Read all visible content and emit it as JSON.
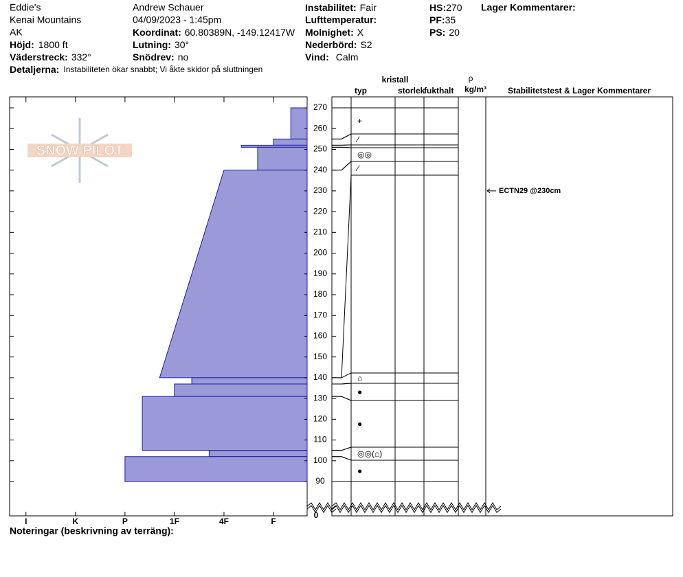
{
  "header": {
    "site": "Eddie's",
    "range": "Kenai Mountains",
    "state": "AK",
    "elevation": {
      "label": "Höjd:",
      "value": "1800 ft"
    },
    "aspect": {
      "label": "Väderstreck:",
      "value": "332°"
    },
    "details": {
      "label": "Detaljerna:",
      "value": "Instabiliteten ökar snabbt; Vi åkte skidor på sluttningen"
    },
    "observer": "Andrew Schauer",
    "datetime": "04/09/2023 - 1:45pm",
    "coordinates": {
      "label": "Koordinat:",
      "value": "60.80389N, -149.12417W"
    },
    "slope": {
      "label": "Lutning:",
      "value": "30°"
    },
    "wind_loading": {
      "label": "Snödrev:",
      "value": "no"
    },
    "instability": {
      "label": "Instabilitet:",
      "value": "Fair"
    },
    "air_temp": {
      "label": "Lufttemperatur:"
    },
    "sky": {
      "label": "Molnighet:",
      "value": "X"
    },
    "precip": {
      "label": "Nederbörd:",
      "value": "S2"
    },
    "wind": {
      "label": "Vind:",
      "value": "Calm"
    },
    "hs": {
      "label": "HS:",
      "value": 270
    },
    "pf": {
      "label": "PF:",
      "value": 35
    },
    "ps": {
      "label": "PS:",
      "value": 20
    },
    "layer_comments": "Lager Kommentarer:"
  },
  "columns": {
    "crystal": "kristall",
    "type": "typ",
    "size": "storlek",
    "moisture": "fukthalt",
    "rho": "ρ",
    "density_unit": "kg/m³",
    "comments": "Stabilitetstest & Lager Kommentarer"
  },
  "logo": "SNOW PILOT",
  "notes": "Noteringar (beskrivning av terräng):",
  "chart_data": {
    "type": "snow_profile",
    "ylim": [
      90,
      270
    ],
    "yticks": [
      90,
      100,
      110,
      120,
      130,
      140,
      150,
      160,
      170,
      180,
      190,
      200,
      210,
      220,
      230,
      240,
      250,
      260,
      270
    ],
    "ybreak_tick": 0,
    "xlim": [
      6.33,
      0.32
    ],
    "xticks": [
      {
        "value": 6,
        "label": "I"
      },
      {
        "value": 5,
        "label": "K"
      },
      {
        "value": 4,
        "label": "P"
      },
      {
        "value": 3,
        "label": "1F"
      },
      {
        "value": 2,
        "label": "4F"
      },
      {
        "value": 1,
        "label": "F"
      }
    ],
    "color": "#9a9ad8",
    "edge_color": "#1a1aa8",
    "layers": [
      {
        "top": 270,
        "bottom": 255,
        "hardness_top": 0.65,
        "hardness_bottom": 0.65,
        "grain": "+"
      },
      {
        "top": 255,
        "bottom": 252,
        "hardness_top": 1.0,
        "hardness_bottom": 1.0,
        "grain": "⁄"
      },
      {
        "top": 252,
        "bottom": 251,
        "hardness_top": 1.65,
        "hardness_bottom": 1.65
      },
      {
        "top": 251,
        "bottom": 240,
        "hardness_top": 1.32,
        "hardness_bottom": 1.32,
        "grain": "◎◎"
      },
      {
        "top": 240,
        "bottom": 140,
        "hardness_top": 2.0,
        "hardness_bottom": 3.3,
        "grain": "⁄"
      },
      {
        "top": 140,
        "bottom": 137,
        "hardness_top": 2.65,
        "hardness_bottom": 2.65,
        "grain": "⌂"
      },
      {
        "top": 137,
        "bottom": 131,
        "hardness_top": 3.0,
        "hardness_bottom": 3.0,
        "grain": "●"
      },
      {
        "top": 131,
        "bottom": 105,
        "hardness_top": 3.65,
        "hardness_bottom": 3.65,
        "grain": "●"
      },
      {
        "top": 105,
        "bottom": 102,
        "hardness_top": 2.3,
        "hardness_bottom": 2.3,
        "grain": "◎◎(⌂)"
      },
      {
        "top": 102,
        "bottom": 90,
        "hardness_top": 4.0,
        "hardness_bottom": 4.0,
        "grain": "●"
      }
    ],
    "stability_tests": [
      {
        "height": 230,
        "label": "ECTN29 @230cm"
      }
    ]
  }
}
